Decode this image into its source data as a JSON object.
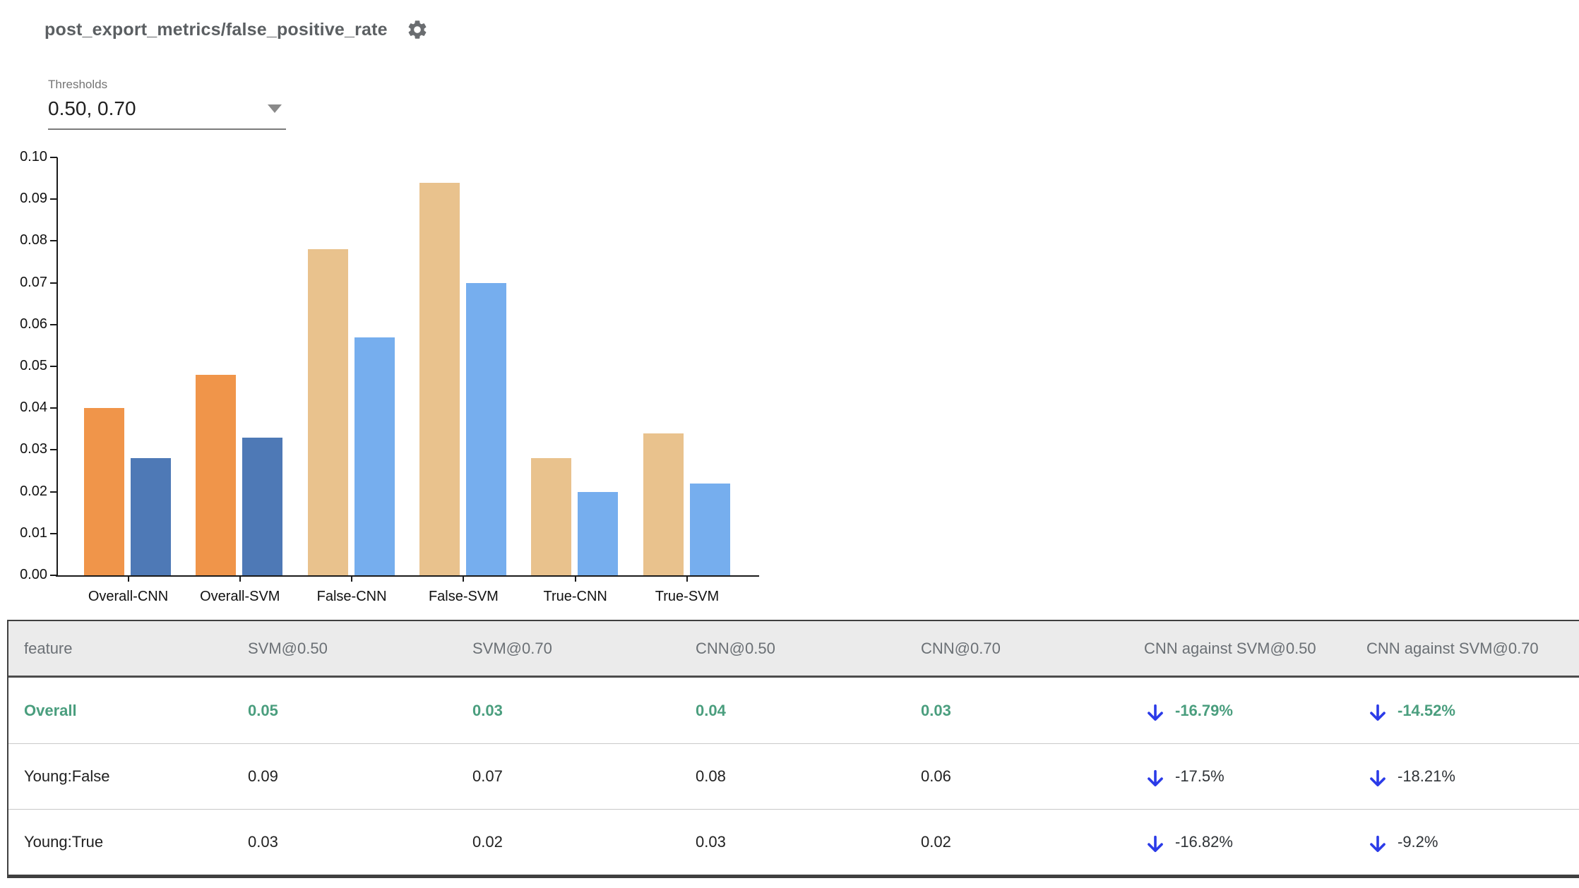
{
  "header": {
    "title": "post_export_metrics/false_positive_rate"
  },
  "thresholds": {
    "label": "Thresholds",
    "value": "0.50, 0.70"
  },
  "chart_data": {
    "type": "bar",
    "title": "post_export_metrics/false_positive_rate",
    "categories": [
      "Overall-CNN",
      "Overall-SVM",
      "False-CNN",
      "False-SVM",
      "True-CNN",
      "True-SVM"
    ],
    "series": [
      {
        "name": "threshold 0.50",
        "values": [
          0.04,
          0.048,
          0.078,
          0.094,
          0.028,
          0.034
        ],
        "colors": [
          "#f0954a",
          "#f0954a",
          "#e9c28d",
          "#e9c28d",
          "#e9c28d",
          "#e9c28d"
        ]
      },
      {
        "name": "threshold 0.70",
        "values": [
          0.028,
          0.033,
          0.057,
          0.07,
          0.02,
          0.022
        ],
        "colors": [
          "#4e79b6",
          "#4e79b6",
          "#76aeee",
          "#76aeee",
          "#76aeee",
          "#76aeee"
        ]
      }
    ],
    "xlabel": "",
    "ylabel": "",
    "ylim": [
      0,
      0.1
    ],
    "ytick_step": 0.01,
    "grid": false,
    "legend": "none"
  },
  "table": {
    "columns": [
      "feature",
      "SVM@0.50",
      "SVM@0.70",
      "CNN@0.50",
      "CNN@0.70",
      "CNN against SVM@0.50",
      "CNN against SVM@0.70"
    ],
    "rows": [
      {
        "feature": "Overall",
        "values": [
          "0.05",
          "0.03",
          "0.04",
          "0.03"
        ],
        "deltas": [
          "-16.79%",
          "-14.52%"
        ],
        "highlight": true
      },
      {
        "feature": "Young:False",
        "values": [
          "0.09",
          "0.07",
          "0.08",
          "0.06"
        ],
        "deltas": [
          "-17.5%",
          "-18.21%"
        ],
        "highlight": false
      },
      {
        "feature": "Young:True",
        "values": [
          "0.03",
          "0.02",
          "0.03",
          "0.02"
        ],
        "deltas": [
          "-16.82%",
          "-9.2%"
        ],
        "highlight": false
      }
    ]
  },
  "colors": {
    "accent_green": "#4a9e7e",
    "arrow_blue": "#2b3be8",
    "header_bg": "#ebebeb",
    "header_text": "#6b7075",
    "title_text": "#5b5f62",
    "bar_overall_t50": "#f0954a",
    "bar_overall_t70": "#4e79b6",
    "bar_slice_t50": "#e9c28d",
    "bar_slice_t70": "#76aeee"
  }
}
